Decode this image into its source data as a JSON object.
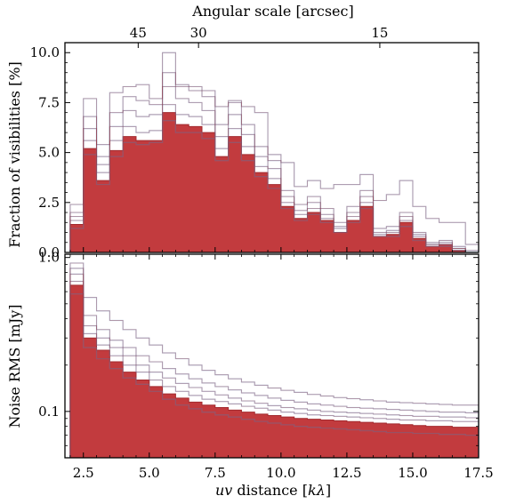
{
  "chart_data": [
    {
      "type": "histogram",
      "top_xlabel": "Angular scale [arcsec]",
      "top_ticks": [
        {
          "label": "45",
          "x": 4.58
        },
        {
          "label": "30",
          "x": 6.87
        },
        {
          "label": "15",
          "x": 13.75
        }
      ],
      "xlim": [
        1.8,
        17.5
      ],
      "ylim": [
        0,
        10.5
      ],
      "ylabel": "Fraction of visibilities [%]",
      "ytick_labels": [
        "0.0",
        "2.5",
        "5.0",
        "7.5",
        "10.0"
      ],
      "yticks": [
        0,
        2.5,
        5.0,
        7.5,
        10.0
      ],
      "bin_edges": [
        2.0,
        2.5,
        3.0,
        3.5,
        4.0,
        4.5,
        5.0,
        5.5,
        6.0,
        6.5,
        7.0,
        7.5,
        8.0,
        8.5,
        9.0,
        9.5,
        10.0,
        10.5,
        11.0,
        11.5,
        12.0,
        12.5,
        13.0,
        13.5,
        14.0,
        14.5,
        15.0,
        15.5,
        16.0,
        16.5,
        17.0,
        17.5
      ],
      "series": [
        {
          "style": "filled",
          "values": [
            1.4,
            5.2,
            3.6,
            5.1,
            5.8,
            5.6,
            5.6,
            7.0,
            6.4,
            6.3,
            6.0,
            4.8,
            5.8,
            4.9,
            4.0,
            3.4,
            2.3,
            1.7,
            2.0,
            1.6,
            1.0,
            1.6,
            2.3,
            0.8,
            0.9,
            1.5,
            0.7,
            0.3,
            0.4,
            0.1,
            0.0
          ]
        },
        {
          "style": "outline",
          "values": [
            1.2,
            4.9,
            3.4,
            4.8,
            5.5,
            5.4,
            5.5,
            6.6,
            6.0,
            6.0,
            5.7,
            4.6,
            5.5,
            4.6,
            3.8,
            3.2,
            2.2,
            1.6,
            1.9,
            1.5,
            1.0,
            1.5,
            2.2,
            0.8,
            0.8,
            1.3,
            0.6,
            0.3,
            0.3,
            0.1,
            0.0
          ]
        },
        {
          "style": "outline",
          "values": [
            1.6,
            5.6,
            4.0,
            5.6,
            6.3,
            6.0,
            6.1,
            7.4,
            6.9,
            6.8,
            6.4,
            5.2,
            6.2,
            5.3,
            4.3,
            3.7,
            2.5,
            1.9,
            2.2,
            1.7,
            1.2,
            1.8,
            2.5,
            0.9,
            1.0,
            1.6,
            0.8,
            0.4,
            0.4,
            0.2,
            0.0
          ]
        },
        {
          "style": "outline",
          "values": [
            1.8,
            6.2,
            4.4,
            6.3,
            7.1,
            6.8,
            6.9,
            8.3,
            7.7,
            7.5,
            7.1,
            5.8,
            6.9,
            5.9,
            4.8,
            4.2,
            2.8,
            2.1,
            2.5,
            1.9,
            1.3,
            2.0,
            2.8,
            1.0,
            1.1,
            1.8,
            0.9,
            0.4,
            0.5,
            0.2,
            0.0
          ]
        },
        {
          "style": "outline",
          "values": [
            2.0,
            6.8,
            4.8,
            7.0,
            7.8,
            7.6,
            7.4,
            9.0,
            8.3,
            8.1,
            7.8,
            6.4,
            7.5,
            6.4,
            5.3,
            4.6,
            3.1,
            2.4,
            2.8,
            2.2,
            1.5,
            2.3,
            3.1,
            1.2,
            1.3,
            2.0,
            1.0,
            0.5,
            0.6,
            0.3,
            0.1
          ]
        },
        {
          "style": "outline",
          "values": [
            2.4,
            7.7,
            5.4,
            8.0,
            8.3,
            8.4,
            7.7,
            10.0,
            8.4,
            8.3,
            8.1,
            7.3,
            7.6,
            7.3,
            7.0,
            4.9,
            4.5,
            3.3,
            3.6,
            3.2,
            3.4,
            3.4,
            3.9,
            2.6,
            2.9,
            3.6,
            2.3,
            1.7,
            1.5,
            1.5,
            0.4
          ]
        }
      ]
    },
    {
      "type": "histogram",
      "xlabel": "uv distance [kλ]",
      "xlabel_italic": "uv",
      "xlabel_rest": " distance [",
      "xlabel_k": "k",
      "xlabel_lambda": "λ",
      "xlabel_close": "]",
      "ylabel": "Noise RMS [mJy]",
      "yscale": "log",
      "xlim": [
        1.8,
        17.5
      ],
      "ylim": [
        0.05,
        1.05
      ],
      "xticks": [
        2.5,
        5.0,
        7.5,
        10.0,
        12.5,
        15.0,
        17.5
      ],
      "xtick_labels": [
        "2.5",
        "5.0",
        "7.5",
        "10.0",
        "12.5",
        "15.0",
        "17.5"
      ],
      "yticks": [
        0.1,
        1.0
      ],
      "ytick_labels": [
        "0.1",
        "1.0"
      ],
      "bin_edges": [
        2.0,
        2.5,
        3.0,
        3.5,
        4.0,
        4.5,
        5.0,
        5.5,
        6.0,
        6.5,
        7.0,
        7.5,
        8.0,
        8.5,
        9.0,
        9.5,
        10.0,
        10.5,
        11.0,
        11.5,
        12.0,
        12.5,
        13.0,
        13.5,
        14.0,
        14.5,
        15.0,
        15.5,
        16.0,
        16.5,
        17.0,
        17.5
      ],
      "series": [
        {
          "style": "filled",
          "values": [
            0.66,
            0.3,
            0.25,
            0.21,
            0.18,
            0.16,
            0.145,
            0.13,
            0.122,
            0.115,
            0.11,
            0.106,
            0.102,
            0.099,
            0.096,
            0.094,
            0.092,
            0.09,
            0.089,
            0.088,
            0.087,
            0.086,
            0.085,
            0.084,
            0.083,
            0.082,
            0.081,
            0.08,
            0.08,
            0.079,
            0.079
          ]
        },
        {
          "style": "outline",
          "values": [
            0.58,
            0.26,
            0.22,
            0.19,
            0.165,
            0.15,
            0.135,
            0.12,
            0.11,
            0.104,
            0.099,
            0.095,
            0.092,
            0.089,
            0.086,
            0.084,
            0.082,
            0.08,
            0.079,
            0.078,
            0.077,
            0.076,
            0.075,
            0.074,
            0.073,
            0.073,
            0.072,
            0.072,
            0.071,
            0.071,
            0.07
          ]
        },
        {
          "style": "outline",
          "values": [
            0.7,
            0.32,
            0.27,
            0.23,
            0.2,
            0.18,
            0.16,
            0.145,
            0.135,
            0.127,
            0.12,
            0.116,
            0.112,
            0.108,
            0.105,
            0.102,
            0.099,
            0.097,
            0.095,
            0.094,
            0.093,
            0.092,
            0.091,
            0.09,
            0.089,
            0.088,
            0.088,
            0.087,
            0.087,
            0.086,
            0.086
          ]
        },
        {
          "style": "outline",
          "values": [
            0.78,
            0.36,
            0.3,
            0.26,
            0.23,
            0.2,
            0.18,
            0.165,
            0.152,
            0.143,
            0.135,
            0.128,
            0.122,
            0.117,
            0.113,
            0.109,
            0.106,
            0.104,
            0.102,
            0.1,
            0.099,
            0.098,
            0.097,
            0.096,
            0.095,
            0.094,
            0.093,
            0.093,
            0.092,
            0.092,
            0.091
          ]
        },
        {
          "style": "outline",
          "values": [
            0.85,
            0.42,
            0.34,
            0.29,
            0.26,
            0.23,
            0.21,
            0.19,
            0.175,
            0.163,
            0.153,
            0.145,
            0.138,
            0.132,
            0.127,
            0.122,
            0.118,
            0.115,
            0.112,
            0.11,
            0.108,
            0.106,
            0.105,
            0.104,
            0.103,
            0.102,
            0.101,
            0.1,
            0.099,
            0.099,
            0.098
          ]
        },
        {
          "style": "outline",
          "values": [
            0.92,
            0.55,
            0.45,
            0.39,
            0.34,
            0.3,
            0.27,
            0.24,
            0.22,
            0.2,
            0.185,
            0.173,
            0.163,
            0.155,
            0.148,
            0.142,
            0.137,
            0.133,
            0.129,
            0.126,
            0.123,
            0.121,
            0.119,
            0.117,
            0.115,
            0.114,
            0.113,
            0.112,
            0.111,
            0.11,
            0.11
          ]
        }
      ]
    }
  ],
  "colors": {
    "fill": "#c23b3e",
    "fill_edge": "#a22a2e",
    "outline": "#5b9bd5"
  }
}
